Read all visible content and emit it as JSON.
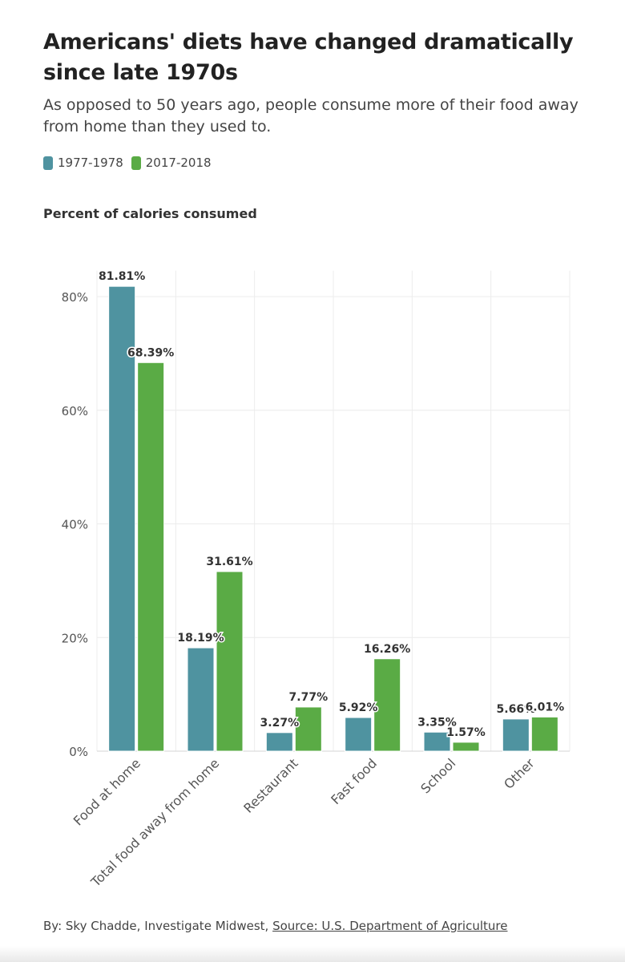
{
  "title": "Americans' diets have changed dramatically since late 1970s",
  "subtitle": "As opposed to 50 years ago, people consume more of their food away from home than they used to.",
  "legend": [
    {
      "label": "1977-1978",
      "color": "#4f93a0"
    },
    {
      "label": "2017-2018",
      "color": "#5aab45"
    }
  ],
  "footer": {
    "byline": "By: Sky Chadde, Investigate Midwest, ",
    "source": "Source: U.S. Department of Agriculture"
  },
  "chart_data": {
    "type": "bar",
    "title": "Americans' diets have changed dramatically since late 1970s",
    "ylabel": "Percent of calories consumed",
    "xlabel": "",
    "categories": [
      "Food at home",
      "Total food away from home",
      "Restaurant",
      "Fast food",
      "School",
      "Other"
    ],
    "series": [
      {
        "name": "1977-1978",
        "values": [
          81.81,
          18.19,
          3.27,
          5.92,
          3.35,
          5.66
        ],
        "labels": [
          "81.81%",
          "18.19%",
          "3.27%",
          "5.92%",
          "3.35%",
          "5.66%"
        ],
        "color": "#4f93a0"
      },
      {
        "name": "2017-2018",
        "values": [
          68.39,
          31.61,
          7.77,
          16.26,
          1.57,
          6.01
        ],
        "labels": [
          "68.39%",
          "31.61%",
          "7.77%",
          "16.26%",
          "1.57%",
          "6.01%"
        ],
        "color": "#5aab45"
      }
    ],
    "ylim": [
      0,
      84
    ],
    "yticks": [
      0,
      20,
      40,
      60,
      80
    ],
    "ytick_labels": [
      "0%",
      "20%",
      "40%",
      "60%",
      "80%"
    ],
    "grid": true,
    "legend_position": "top-left"
  }
}
